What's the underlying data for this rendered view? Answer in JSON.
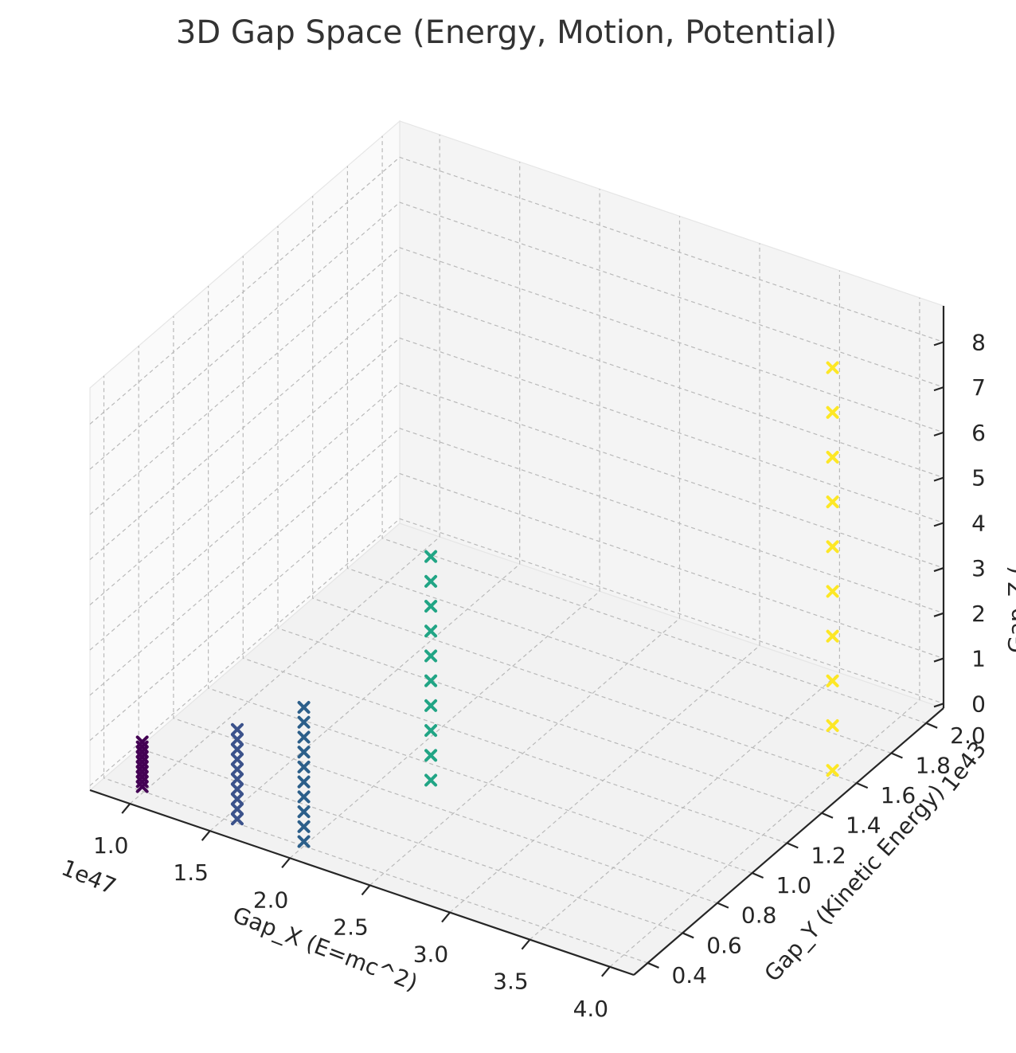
{
  "chart_data": {
    "type": "scatter3d",
    "title": "3D Gap Space (Energy, Motion, Potential)",
    "xlabel": "Gap_X (E=mc^2)",
    "ylabel": "Gap_Y (Kinetic Energy)",
    "zlabel": "Gap_Z (",
    "x_offset_label": "1e47",
    "y_offset_label": "1e43",
    "x_ticks": [
      "1.0",
      "1.5",
      "2.0",
      "2.5",
      "3.0",
      "3.5",
      "4.0"
    ],
    "y_ticks": [
      "0.4",
      "0.6",
      "0.8",
      "1.0",
      "1.2",
      "1.4",
      "1.6",
      "1.8",
      "2.0"
    ],
    "z_ticks": [
      "0",
      "1",
      "2",
      "3",
      "4",
      "5",
      "6",
      "7",
      "8"
    ],
    "xlim": [
      0.75,
      4.15
    ],
    "ylim": [
      0.32,
      2.1
    ],
    "zlim": [
      -0.1,
      8.8
    ],
    "grid": true,
    "marker": "x",
    "colormap": "viridis",
    "series": [
      {
        "color": "#440154",
        "x": 0.9898,
        "y": 0.4,
        "z": [
          0.0,
          0.11,
          0.22,
          0.33,
          0.44,
          0.55,
          0.66,
          0.77,
          0.88,
          0.99
        ]
      },
      {
        "color": "#3b528b",
        "x": 1.5837,
        "y": 0.4,
        "z": [
          0.0,
          0.22,
          0.44,
          0.66,
          0.88,
          1.1,
          1.32,
          1.54,
          1.76,
          1.98
        ]
      },
      {
        "color": "#2c5f8a",
        "x": 2.0,
        "y": 0.4,
        "z": [
          0.0,
          0.33,
          0.66,
          0.99,
          1.32,
          1.65,
          1.98,
          2.31,
          2.64,
          2.97
        ]
      },
      {
        "color": "#21a585",
        "x": 2.25,
        "y": 0.9,
        "z": [
          0.0,
          0.55,
          1.1,
          1.65,
          2.2,
          2.75,
          3.3,
          3.85,
          4.4,
          4.95
        ]
      },
      {
        "color": "#fde725",
        "x": 4.0,
        "y": 1.6,
        "z": [
          0.0,
          0.99,
          1.98,
          2.97,
          3.96,
          4.95,
          5.94,
          6.93,
          7.92,
          8.91
        ]
      }
    ]
  }
}
